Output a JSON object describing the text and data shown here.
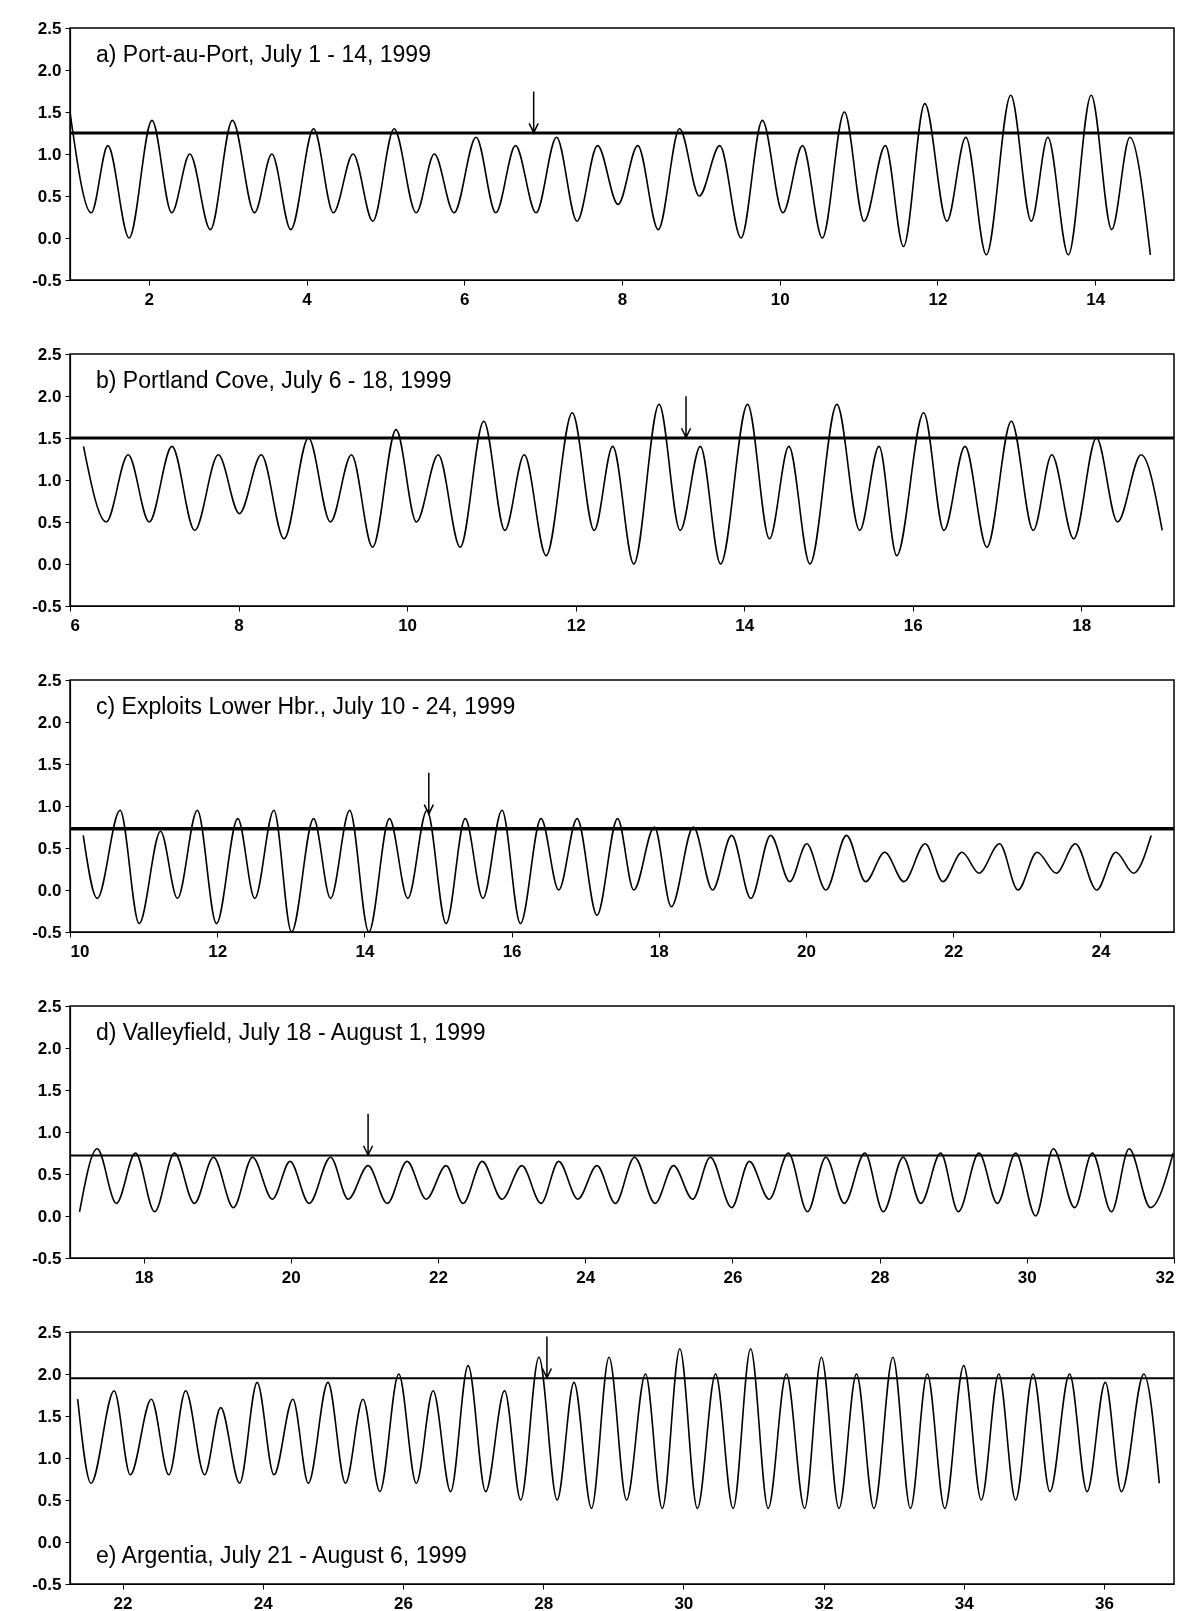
{
  "chart_data": [
    {
      "type": "line",
      "title": "a) Port-au-Port, July 1 - 14, 1999",
      "series": [
        {
          "type": "line",
          "color": "#000000",
          "x": [
            1.0,
            1.27,
            1.48,
            1.75,
            2.04,
            2.29,
            2.52,
            2.78,
            3.06,
            3.34,
            3.56,
            3.8,
            4.09,
            4.34,
            4.59,
            4.84,
            5.11,
            5.39,
            5.62,
            5.87,
            6.15,
            6.4,
            6.65,
            6.91,
            7.17,
            7.43,
            7.69,
            7.95,
            8.2,
            8.46,
            8.73,
            8.98,
            9.24,
            9.51,
            9.78,
            10.04,
            10.29,
            10.54,
            10.82,
            11.07,
            11.34,
            11.57,
            11.84,
            12.12,
            12.36,
            12.62,
            12.93,
            13.19,
            13.4,
            13.66,
            13.95,
            14.21,
            14.44,
            14.7
          ],
          "values": [
            1.5,
            0.3,
            1.1,
            0.0,
            1.4,
            0.3,
            1.0,
            0.1,
            1.4,
            0.3,
            1.0,
            0.1,
            1.3,
            0.3,
            1.0,
            0.2,
            1.3,
            0.3,
            1.0,
            0.3,
            1.2,
            0.3,
            1.1,
            0.3,
            1.2,
            0.2,
            1.1,
            0.4,
            1.1,
            0.1,
            1.3,
            0.5,
            1.1,
            0.0,
            1.4,
            0.3,
            1.1,
            0.0,
            1.5,
            0.2,
            1.1,
            -0.1,
            1.6,
            0.2,
            1.2,
            -0.2,
            1.7,
            0.2,
            1.2,
            -0.2,
            1.7,
            0.1,
            1.2,
            -0.2
          ]
        }
      ],
      "xlim": [
        1,
        15
      ],
      "xticks": [
        2,
        4,
        6,
        8,
        10,
        12,
        14
      ],
      "ylim": [
        -0.5,
        2.5
      ],
      "yticks": [
        -0.5,
        {
          "value": 0,
          "label": "0.0"
        },
        0.5,
        {
          "value": 1,
          "label": "1.0"
        },
        1.5,
        {
          "value": 2,
          "label": "2.0"
        },
        2.5
      ],
      "ref_lines": [
        {
          "axis": "y",
          "value": 1.25
        }
      ]
    },
    {
      "type": "line",
      "title": "b) Portland Cove, July 6 - 18, 1999",
      "series": [
        {
          "type": "line",
          "color": "#000000",
          "x": [
            6.16,
            6.43,
            6.69,
            6.94,
            7.21,
            7.48,
            7.76,
            8.01,
            8.27,
            8.54,
            8.83,
            9.09,
            9.34,
            9.59,
            9.87,
            10.11,
            10.37,
            10.63,
            10.91,
            11.16,
            11.39,
            11.65,
            11.96,
            12.22,
            12.44,
            12.69,
            12.99,
            13.24,
            13.48,
            13.72,
            14.04,
            14.3,
            14.53,
            14.78,
            15.1,
            15.37,
            15.6,
            15.81,
            16.13,
            16.37,
            16.62,
            16.88,
            17.17,
            17.43,
            17.65,
            17.91,
            18.18,
            18.43,
            18.71,
            18.96
          ],
          "values": [
            1.4,
            0.5,
            1.3,
            0.5,
            1.4,
            0.4,
            1.3,
            0.6,
            1.3,
            0.3,
            1.5,
            0.5,
            1.3,
            0.2,
            1.6,
            0.5,
            1.3,
            0.2,
            1.7,
            0.4,
            1.3,
            0.1,
            1.8,
            0.4,
            1.4,
            0.0,
            1.9,
            0.4,
            1.4,
            0.0,
            1.9,
            0.3,
            1.4,
            0.0,
            1.9,
            0.4,
            1.4,
            0.1,
            1.8,
            0.4,
            1.4,
            0.2,
            1.7,
            0.4,
            1.3,
            0.3,
            1.5,
            0.5,
            1.3,
            0.4
          ]
        }
      ],
      "xlim": [
        6,
        19.1
      ],
      "xticks": [
        6,
        8,
        10,
        12,
        14,
        16,
        18
      ],
      "ylim": [
        -0.5,
        2.5
      ],
      "yticks": [
        -0.5,
        {
          "value": 0,
          "label": "0.0"
        },
        0.5,
        {
          "value": 1,
          "label": "1.0"
        },
        1.5,
        {
          "value": 2,
          "label": "2.0"
        },
        2.5
      ],
      "ref_lines": [
        {
          "axis": "y",
          "value": 1.5
        }
      ]
    },
    {
      "type": "line",
      "title": "c) Exploits Lower Hbr., July 10 - 24, 1999",
      "series": [
        {
          "type": "line",
          "color": "#000000",
          "x": [
            10.18,
            10.37,
            10.68,
            10.94,
            11.23,
            11.46,
            11.73,
            11.99,
            12.28,
            12.51,
            12.77,
            13.01,
            13.31,
            13.54,
            13.8,
            14.06,
            14.34,
            14.59,
            14.85,
            15.11,
            15.37,
            15.61,
            15.87,
            16.12,
            16.4,
            16.64,
            16.89,
            17.16,
            17.44,
            17.66,
            17.94,
            18.17,
            18.47,
            18.73,
            18.99,
            19.25,
            19.52,
            19.78,
            20.01,
            20.27,
            20.55,
            20.81,
            21.07,
            21.33,
            21.62,
            21.86,
            22.12,
            22.35,
            22.63,
            22.88,
            23.14,
            23.4,
            23.66,
            23.95,
            24.21,
            24.45,
            24.69
          ],
          "values": [
            0.65,
            -0.1,
            0.95,
            -0.4,
            0.7,
            -0.1,
            0.95,
            -0.4,
            0.85,
            -0.1,
            0.95,
            -0.5,
            0.85,
            -0.1,
            0.95,
            -0.5,
            0.85,
            -0.1,
            0.95,
            -0.4,
            0.85,
            -0.1,
            0.95,
            -0.4,
            0.85,
            0.0,
            0.85,
            -0.3,
            0.85,
            0.0,
            0.75,
            -0.2,
            0.75,
            0.0,
            0.65,
            -0.1,
            0.65,
            0.1,
            0.55,
            0.0,
            0.65,
            0.1,
            0.45,
            0.1,
            0.55,
            0.1,
            0.45,
            0.2,
            0.55,
            0.0,
            0.45,
            0.2,
            0.55,
            0.0,
            0.45,
            0.2,
            0.65
          ]
        }
      ],
      "xlim": [
        10,
        25
      ],
      "xticks": [
        10,
        12,
        14,
        16,
        18,
        20,
        22,
        24
      ],
      "ylim": [
        -0.5,
        2.5
      ],
      "yticks": [
        -0.5,
        {
          "value": 0,
          "label": "0.0"
        },
        0.5,
        {
          "value": 1,
          "label": "1.0"
        },
        1.5,
        {
          "value": 2,
          "label": "2.0"
        },
        2.5
      ],
      "ref_lines": [
        {
          "axis": "y",
          "value": 0.73
        }
      ]
    },
    {
      "type": "line",
      "title": "d) Valleyfield, July 18 - August 1, 1999",
      "series": [
        {
          "type": "line",
          "color": "#000000",
          "x": [
            17.13,
            17.37,
            17.63,
            17.89,
            18.15,
            18.42,
            18.69,
            18.95,
            19.22,
            19.48,
            19.75,
            19.99,
            20.25,
            20.54,
            20.78,
            21.05,
            21.31,
            21.58,
            21.84,
            22.11,
            22.34,
            22.6,
            22.87,
            23.14,
            23.4,
            23.64,
            23.9,
            24.16,
            24.41,
            24.67,
            24.95,
            25.2,
            25.46,
            25.7,
            25.99,
            26.23,
            26.5,
            26.76,
            27.02,
            27.27,
            27.52,
            27.8,
            28.05,
            28.32,
            28.56,
            28.83,
            29.07,
            29.35,
            29.6,
            29.85,
            30.12,
            30.36,
            30.65,
            30.89,
            31.15,
            31.39,
            31.68,
            31.99
          ],
          "values": [
            0.05,
            0.8,
            0.15,
            0.75,
            0.05,
            0.75,
            0.15,
            0.7,
            0.1,
            0.7,
            0.2,
            0.65,
            0.15,
            0.7,
            0.2,
            0.6,
            0.15,
            0.65,
            0.2,
            0.6,
            0.15,
            0.65,
            0.2,
            0.6,
            0.15,
            0.65,
            0.2,
            0.6,
            0.15,
            0.7,
            0.15,
            0.6,
            0.2,
            0.7,
            0.1,
            0.65,
            0.2,
            0.75,
            0.05,
            0.7,
            0.15,
            0.75,
            0.05,
            0.7,
            0.15,
            0.75,
            0.05,
            0.75,
            0.15,
            0.75,
            0.0,
            0.8,
            0.1,
            0.75,
            0.05,
            0.8,
            0.1,
            0.75
          ]
        }
      ],
      "xlim": [
        17,
        32
      ],
      "xticks": [
        18,
        20,
        22,
        24,
        26,
        28,
        30,
        32
      ],
      "ylim": [
        -0.5,
        2.5
      ],
      "yticks": [
        -0.5,
        {
          "value": 0,
          "label": "0.0"
        },
        0.5,
        {
          "value": 1,
          "label": "1.0"
        },
        1.5,
        {
          "value": 2,
          "label": "2.0"
        },
        2.5
      ],
      "ref_lines": [
        {
          "axis": "y",
          "value": 0.72
        }
      ]
    },
    {
      "type": "line",
      "title": "e) Argentia, July 21 - August 6, 1999",
      "series": [
        {
          "type": "line",
          "color": "#000000",
          "x": [
            21.36,
            21.55,
            21.88,
            22.11,
            22.41,
            22.66,
            22.9,
            23.17,
            23.4,
            23.67,
            23.92,
            24.16,
            24.43,
            24.65,
            24.93,
            25.18,
            25.43,
            25.67,
            25.94,
            26.19,
            26.43,
            26.68,
            26.93,
            27.18,
            27.45,
            27.68,
            27.94,
            28.2,
            28.44,
            28.69,
            28.94,
            29.19,
            29.46,
            29.7,
            29.95,
            30.2,
            30.46,
            30.71,
            30.96,
            31.21,
            31.47,
            31.73,
            31.97,
            32.22,
            32.47,
            32.72,
            32.99,
            33.24,
            33.48,
            33.73,
            34.0,
            34.25,
            34.5,
            34.74,
            34.99,
            35.23,
            35.51,
            35.76,
            36.02,
            36.25,
            36.57,
            36.79
          ],
          "values": [
            1.7,
            0.7,
            1.8,
            0.8,
            1.7,
            0.8,
            1.8,
            0.8,
            1.6,
            0.7,
            1.9,
            0.8,
            1.7,
            0.7,
            1.9,
            0.7,
            1.7,
            0.6,
            2.0,
            0.7,
            1.8,
            0.6,
            2.1,
            0.6,
            1.8,
            0.5,
            2.2,
            0.5,
            1.9,
            0.4,
            2.2,
            0.5,
            2.0,
            0.4,
            2.3,
            0.4,
            2.0,
            0.4,
            2.3,
            0.4,
            2.0,
            0.4,
            2.2,
            0.4,
            2.0,
            0.4,
            2.2,
            0.4,
            2.0,
            0.4,
            2.1,
            0.5,
            2.0,
            0.5,
            2.0,
            0.6,
            2.0,
            0.6,
            1.9,
            0.6,
            2.0,
            0.7
          ]
        }
      ],
      "xlim": [
        21.25,
        37
      ],
      "xticks": [
        22,
        24,
        26,
        28,
        30,
        32,
        34,
        36
      ],
      "ylim": [
        -0.5,
        2.5
      ],
      "yticks": [
        -0.5,
        {
          "value": 0,
          "label": "0.0"
        },
        0.5,
        {
          "value": 1,
          "label": "1.0"
        },
        1.5,
        {
          "value": 2,
          "label": "2.0"
        },
        2.5
      ],
      "ref_lines": [
        {
          "axis": "y",
          "value": 1.95
        }
      ]
    }
  ]
}
